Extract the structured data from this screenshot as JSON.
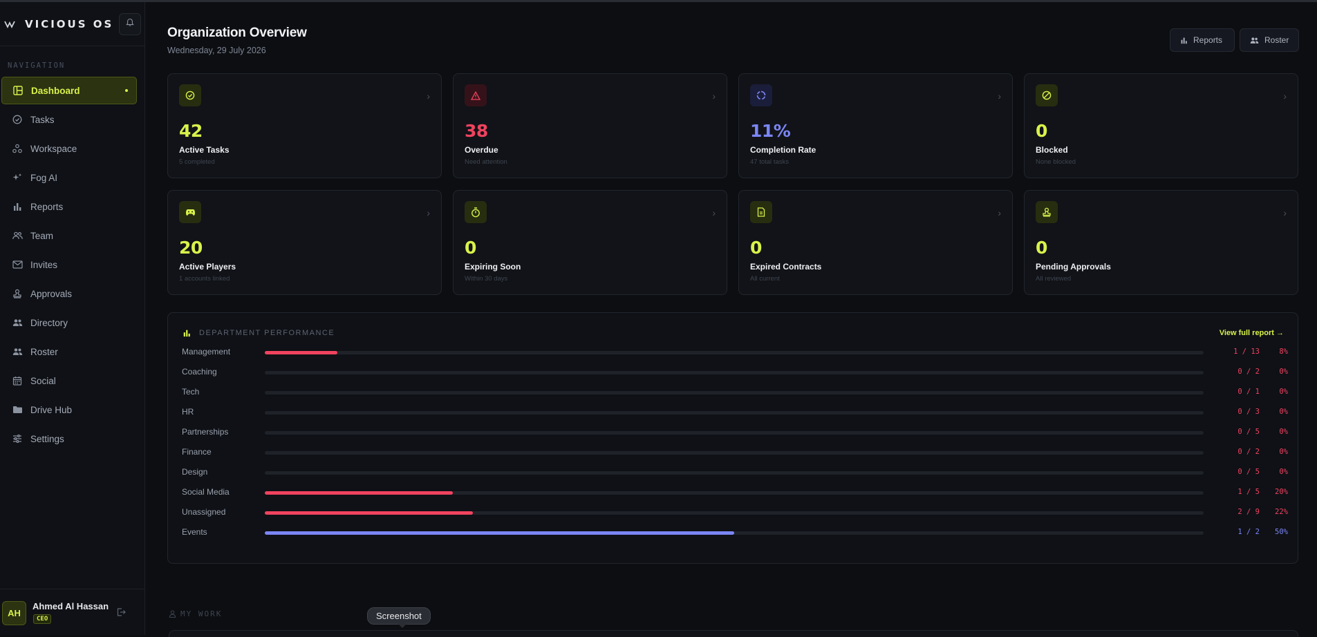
{
  "app": {
    "name": "VICIOUS OS"
  },
  "sidebar": {
    "heading": "NAVIGATION",
    "items": [
      {
        "label": "Dashboard",
        "icon": "dashboard-icon",
        "active": true
      },
      {
        "label": "Tasks",
        "icon": "check-circle-icon"
      },
      {
        "label": "Workspace",
        "icon": "workspace-icon"
      },
      {
        "label": "Fog AI",
        "icon": "sparkles-icon"
      },
      {
        "label": "Reports",
        "icon": "bar-chart-icon"
      },
      {
        "label": "Team",
        "icon": "team-icon"
      },
      {
        "label": "Invites",
        "icon": "mail-icon"
      },
      {
        "label": "Approvals",
        "icon": "stamp-icon"
      },
      {
        "label": "Directory",
        "icon": "people-icon"
      },
      {
        "label": "Roster",
        "icon": "roster-icon"
      },
      {
        "label": "Social",
        "icon": "calendar-icon"
      },
      {
        "label": "Drive Hub",
        "icon": "folder-icon"
      },
      {
        "label": "Settings",
        "icon": "sliders-icon"
      }
    ]
  },
  "user": {
    "initials": "AH",
    "name": "Ahmed Al Hassan",
    "role": "CEO"
  },
  "header": {
    "title": "Organization Overview",
    "date": "Wednesday, 29 July 2026",
    "reports_label": "Reports",
    "roster_label": "Roster"
  },
  "cards": [
    {
      "value": "42",
      "label": "Active Tasks",
      "sub": "5 completed",
      "color": "#d9f24a",
      "icon": "check-circle-icon"
    },
    {
      "value": "38",
      "label": "Overdue",
      "sub": "Need attention",
      "color": "#f0435f",
      "icon": "warning-triangle-icon"
    },
    {
      "value": "11%",
      "label": "Completion Rate",
      "sub": "47 total tasks",
      "color": "#7b86f5",
      "icon": "progress-ring-icon"
    },
    {
      "value": "0",
      "label": "Blocked",
      "sub": "None blocked",
      "color": "#d9f24a",
      "icon": "blocked-icon"
    },
    {
      "value": "20",
      "label": "Active Players",
      "sub": "1 accounts linked",
      "color": "#d9f24a",
      "icon": "gamepad-icon"
    },
    {
      "value": "0",
      "label": "Expiring Soon",
      "sub": "Within 30 days",
      "color": "#d9f24a",
      "icon": "stopwatch-icon"
    },
    {
      "value": "0",
      "label": "Expired Contracts",
      "sub": "All current",
      "color": "#d9f24a",
      "icon": "document-icon"
    },
    {
      "value": "0",
      "label": "Pending Approvals",
      "sub": "All reviewed",
      "color": "#d9f24a",
      "icon": "stamp-icon"
    }
  ],
  "department": {
    "title": "DEPARTMENT PERFORMANCE",
    "link": "View full report →",
    "rows": [
      {
        "name": "Management",
        "count": "1 / 13",
        "pct": "8%",
        "fraction": 0.077,
        "color": "#f0435f"
      },
      {
        "name": "Coaching",
        "count": "0 / 2",
        "pct": "0%",
        "fraction": 0,
        "color": "#f0435f"
      },
      {
        "name": "Tech",
        "count": "0 / 1",
        "pct": "0%",
        "fraction": 0,
        "color": "#f0435f"
      },
      {
        "name": "HR",
        "count": "0 / 3",
        "pct": "0%",
        "fraction": 0,
        "color": "#f0435f"
      },
      {
        "name": "Partnerships",
        "count": "0 / 5",
        "pct": "0%",
        "fraction": 0,
        "color": "#f0435f"
      },
      {
        "name": "Finance",
        "count": "0 / 2",
        "pct": "0%",
        "fraction": 0,
        "color": "#f0435f"
      },
      {
        "name": "Design",
        "count": "0 / 5",
        "pct": "0%",
        "fraction": 0,
        "color": "#f0435f"
      },
      {
        "name": "Social Media",
        "count": "1 / 5",
        "pct": "20%",
        "fraction": 0.2,
        "color": "#f0435f"
      },
      {
        "name": "Unassigned",
        "count": "2 / 9",
        "pct": "22%",
        "fraction": 0.222,
        "color": "#f0435f"
      },
      {
        "name": "Events",
        "count": "1 / 2",
        "pct": "50%",
        "fraction": 0.5,
        "color": "#7b86f5"
      }
    ]
  },
  "mywork": {
    "title": "MY WORK"
  },
  "tooltip": {
    "text": "Screenshot"
  }
}
